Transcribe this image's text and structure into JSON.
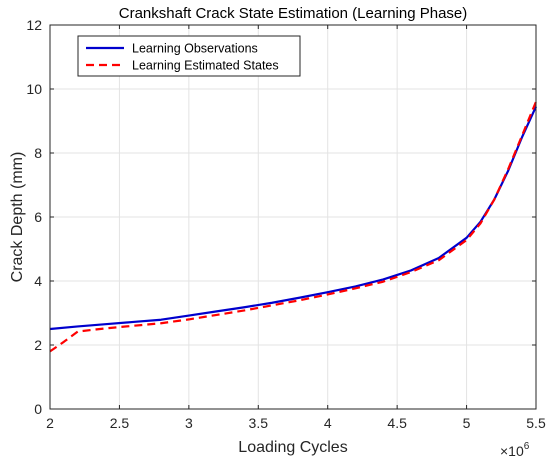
{
  "chart_data": {
    "type": "line",
    "title": "Crankshaft Crack State Estimation (Learning Phase)",
    "xlabel": "Loading Cycles",
    "ylabel": "Crack Depth (mm)",
    "xlim": [
      2000000,
      5500000
    ],
    "ylim": [
      0,
      12
    ],
    "x_ticks": [
      2000000,
      2500000,
      3000000,
      3500000,
      4000000,
      4500000,
      5000000,
      5500000
    ],
    "x_tick_labels": [
      "2",
      "2.5",
      "3",
      "3.5",
      "4",
      "4.5",
      "5",
      "5.5"
    ],
    "y_ticks": [
      0,
      2,
      4,
      6,
      8,
      10,
      12
    ],
    "y_tick_labels": [
      "0",
      "2",
      "4",
      "6",
      "8",
      "10",
      "12"
    ],
    "x_exponent_base": "×10",
    "x_exponent_power": "6",
    "grid": true,
    "legend_position": "top-left",
    "series": [
      {
        "name": "Learning Observations",
        "color": "#0000CD",
        "style": "solid",
        "x": [
          2000000,
          2200000,
          2400000,
          2600000,
          2800000,
          3000000,
          3200000,
          3400000,
          3600000,
          3800000,
          4000000,
          4200000,
          4400000,
          4600000,
          4800000,
          5000000,
          5100000,
          5200000,
          5300000,
          5400000,
          5500000
        ],
        "y": [
          2.5,
          2.58,
          2.65,
          2.72,
          2.79,
          2.92,
          3.05,
          3.18,
          3.32,
          3.48,
          3.65,
          3.83,
          4.05,
          4.33,
          4.72,
          5.35,
          5.85,
          6.55,
          7.45,
          8.5,
          9.45
        ]
      },
      {
        "name": "Learning Estimated States",
        "color": "#FF0000",
        "style": "dashed",
        "x": [
          2000000,
          2100000,
          2200000,
          2400000,
          2600000,
          2800000,
          3000000,
          3200000,
          3400000,
          3600000,
          3800000,
          4000000,
          4200000,
          4400000,
          4600000,
          4800000,
          5000000,
          5100000,
          5200000,
          5300000,
          5400000,
          5500000
        ],
        "y": [
          1.8,
          2.1,
          2.42,
          2.52,
          2.6,
          2.68,
          2.8,
          2.94,
          3.08,
          3.24,
          3.4,
          3.58,
          3.77,
          3.98,
          4.28,
          4.65,
          5.28,
          5.8,
          6.55,
          7.5,
          8.55,
          9.6
        ]
      }
    ]
  }
}
